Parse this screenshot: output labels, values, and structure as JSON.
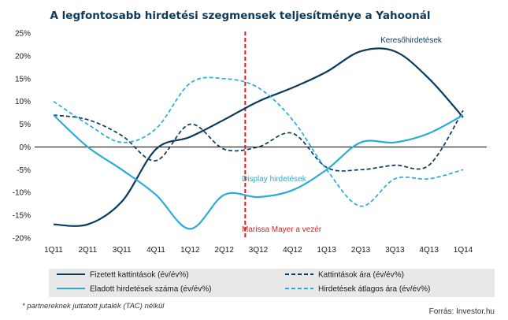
{
  "chart_data": {
    "type": "line",
    "title": "A legfontosabb hirdetési szegmensek teljesítménye  a Yahoonál",
    "categories": [
      "1Q11",
      "2Q11",
      "3Q11",
      "4Q11",
      "1Q12",
      "2Q12",
      "3Q12",
      "4Q12",
      "1Q13",
      "2Q13",
      "3Q13",
      "4Q13",
      "1Q14"
    ],
    "y_ticks": [
      "25%",
      "20%",
      "15%",
      "10%",
      "5%",
      "0%",
      "-5%",
      "-10%",
      "-15%",
      "-20%"
    ],
    "ylim": [
      -20,
      25
    ],
    "grid": false,
    "legend_position": "bottom",
    "series": [
      {
        "name": "Fizetett kattintások (év/év%)",
        "color": "#0b3a5c",
        "dash": "solid",
        "values": [
          -17,
          -17,
          -12,
          -0.5,
          2.2,
          6,
          10,
          13,
          16.5,
          21,
          21,
          15,
          6.5
        ]
      },
      {
        "name": "Kattintások ára (év/év%)",
        "color": "#0b3a5c",
        "dash": "dashed",
        "values": [
          7,
          6,
          2.5,
          -3,
          5,
          -0.5,
          0,
          3,
          -4.5,
          -5,
          -4,
          -4,
          8
        ]
      },
      {
        "name": "Eladott hirdetések száma (év/év%)",
        "color": "#29acd9",
        "dash": "solid",
        "values": [
          7,
          0,
          -5,
          -10.5,
          -18,
          -10.5,
          -11,
          -9.5,
          -5,
          1,
          1,
          3,
          7
        ]
      },
      {
        "name": "Hirdetések átlagos ára (év/év%)",
        "color": "#29acd9",
        "dash": "dashed",
        "values": [
          10,
          5,
          1,
          4,
          14,
          15,
          13,
          6,
          -5,
          -13,
          -7,
          -7,
          -5
        ]
      }
    ],
    "vertical_marker": {
      "position_label": "3Q12",
      "label": "Marissa Mayer a vezér",
      "color": "#d62020"
    },
    "annotations": [
      {
        "text": "Keresőhirdetések",
        "color": "#0b3a5c"
      },
      {
        "text": "Display hirdetések",
        "color": "#29acd9"
      }
    ],
    "footnote": "* partnereknek juttatott jutalék (TAC) nélkül",
    "source": "Forrás: Investor.hu"
  },
  "colors": {
    "dark_navy": "#0b3a5c",
    "light_blue": "#29acd9",
    "marker_red": "#d62020",
    "legend_bg": "#e8e8e8"
  }
}
